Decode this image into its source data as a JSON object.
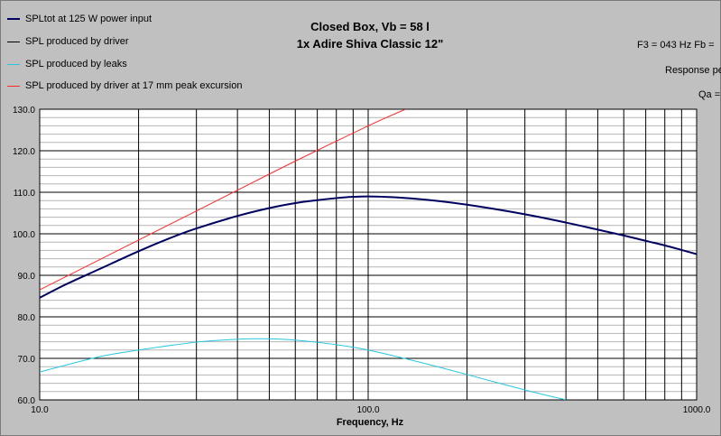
{
  "chart_data": {
    "type": "line",
    "title": "Closed Box, Vb = 58 l",
    "subtitle": "1x Adire Shiva Classic 12\"",
    "xlabel": "Frequency, Hz",
    "ylabel": "",
    "xscale": "log",
    "xlim": [
      10,
      1000
    ],
    "ylim": [
      60,
      130
    ],
    "grid": true,
    "legend_position": "top-left",
    "x_tick_labels": [
      "10.0",
      "100.0",
      "1000.0"
    ],
    "y_tick_labels": [
      "60.0",
      "70.0",
      "80.0",
      "90.0",
      "100.0",
      "110.0",
      "120.0",
      "130.0"
    ],
    "series": [
      {
        "name": "SPLtot at 125 W power input",
        "color": "#000060",
        "x": [
          10,
          12,
          15,
          20,
          25,
          30,
          40,
          50,
          60,
          70,
          80,
          90,
          100,
          120,
          150,
          200,
          300,
          400,
          500,
          600,
          700,
          800,
          900,
          1000
        ],
        "y": [
          84.6,
          87.8,
          91.3,
          95.8,
          99.0,
          101.3,
          104.3,
          106.2,
          107.4,
          108.1,
          108.6,
          108.9,
          109.0,
          108.8,
          108.2,
          107.0,
          104.7,
          102.7,
          101.0,
          99.6,
          98.3,
          97.2,
          96.1,
          95.1
        ]
      },
      {
        "name": "SPL produced by driver",
        "color": "#000000",
        "x": [],
        "y": []
      },
      {
        "name": "SPL produced by leaks",
        "color": "#27c7e0",
        "x": [
          10,
          15,
          20,
          30,
          40,
          50,
          60,
          80,
          100,
          150,
          200,
          300,
          400
        ],
        "y": [
          66.7,
          70.3,
          72.0,
          73.9,
          74.6,
          74.7,
          74.4,
          73.3,
          72.0,
          68.7,
          66.1,
          62.4,
          60.0
        ]
      },
      {
        "name": "SPL produced by driver at 17 mm peak excursion",
        "color": "#ff2a2a",
        "x": [
          10,
          20,
          30,
          40,
          60,
          100,
          130
        ],
        "y": [
          86.5,
          98.5,
          105.5,
          110.5,
          117.5,
          126.0,
          130.0
        ]
      }
    ]
  },
  "info": {
    "f3": "F3 = 043 Hz  Fb =",
    "response": "Response pe",
    "qa": "Qa ="
  }
}
